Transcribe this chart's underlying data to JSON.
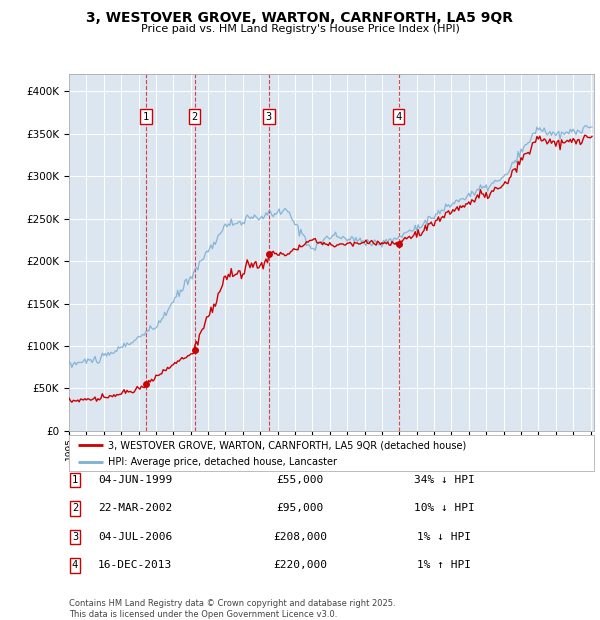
{
  "title": "3, WESTOVER GROVE, WARTON, CARNFORTH, LA5 9QR",
  "subtitle": "Price paid vs. HM Land Registry's House Price Index (HPI)",
  "ylim": [
    0,
    420000
  ],
  "yticks": [
    0,
    50000,
    100000,
    150000,
    200000,
    250000,
    300000,
    350000,
    400000
  ],
  "background_color": "#ffffff",
  "plot_bg_color": "#dce6f0",
  "grid_color": "#ffffff",
  "red_line_color": "#cc0000",
  "blue_line_color": "#7bafd4",
  "sale_years_float": [
    1999.42,
    2002.22,
    2006.5,
    2013.96
  ],
  "sale_prices": [
    55000,
    95000,
    208000,
    220000
  ],
  "sale_labels": [
    "1",
    "2",
    "3",
    "4"
  ],
  "sale_info": [
    {
      "label": "1",
      "date": "04-JUN-1999",
      "price": "£55,000",
      "hpi": "34% ↓ HPI"
    },
    {
      "label": "2",
      "date": "22-MAR-2002",
      "price": "£95,000",
      "hpi": "10% ↓ HPI"
    },
    {
      "label": "3",
      "date": "04-JUL-2006",
      "price": "£208,000",
      "hpi": "1% ↓ HPI"
    },
    {
      "label": "4",
      "date": "16-DEC-2013",
      "price": "£220,000",
      "hpi": "1% ↑ HPI"
    }
  ],
  "legend_red": "3, WESTOVER GROVE, WARTON, CARNFORTH, LA5 9QR (detached house)",
  "legend_blue": "HPI: Average price, detached house, Lancaster",
  "footnote": "Contains HM Land Registry data © Crown copyright and database right 2025.\nThis data is licensed under the Open Government Licence v3.0.",
  "vline_color": "#cc0000"
}
